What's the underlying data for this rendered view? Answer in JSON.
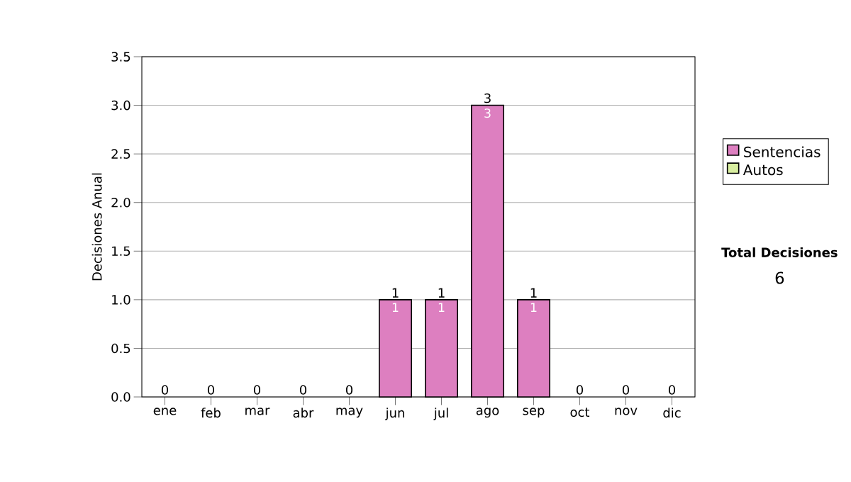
{
  "chart_data": {
    "type": "bar",
    "stacked": true,
    "ylabel": "Decisiones Anual",
    "categories": [
      "ene",
      "feb",
      "mar",
      "abr",
      "may",
      "jun",
      "jul",
      "ago",
      "sep",
      "oct",
      "nov",
      "dic"
    ],
    "series": [
      {
        "name": "Sentencias",
        "color": "#dd7fc0",
        "values": [
          0,
          0,
          0,
          0,
          0,
          1,
          1,
          3,
          1,
          0,
          0,
          0
        ],
        "value_labels": [
          null,
          null,
          null,
          null,
          null,
          "1",
          "1",
          "3",
          "1",
          null,
          null,
          null
        ]
      },
      {
        "name": "Autos",
        "color": "#d8eea0",
        "values": [
          0,
          0,
          0,
          0,
          0,
          0,
          0,
          0,
          0,
          0,
          0,
          0
        ]
      }
    ],
    "totals": [
      "0",
      "0",
      "0",
      "0",
      "0",
      "1",
      "1",
      "3",
      "1",
      "0",
      "0",
      "0"
    ],
    "ylim": [
      0,
      3.5
    ],
    "yticks": [
      {
        "value": 0,
        "label": "0.0"
      },
      {
        "value": 0.5,
        "label": "0.5"
      },
      {
        "value": 1,
        "label": "1.0"
      },
      {
        "value": 1.5,
        "label": "1.5"
      },
      {
        "value": 2,
        "label": "2.0"
      },
      {
        "value": 2.5,
        "label": "2.5"
      },
      {
        "value": 3,
        "label": "3.0"
      },
      {
        "value": 3.5,
        "label": "3.5"
      }
    ],
    "grid": "y",
    "legend": "right",
    "annotations": [
      "Total Decisiones",
      "6"
    ]
  }
}
